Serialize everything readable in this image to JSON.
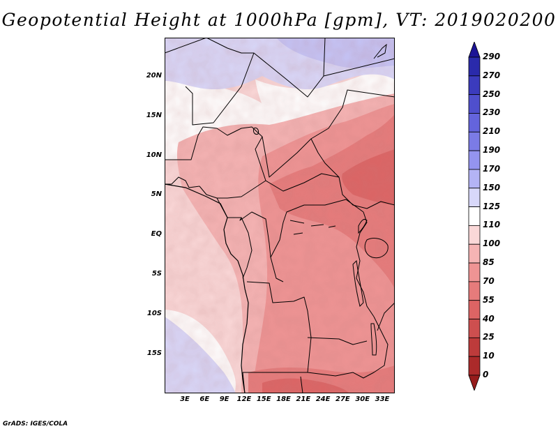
{
  "title": "Geopotential Height at 1000hPa [gpm], VT: 2019020200",
  "map": {
    "region": "Central Africa",
    "variable": "Geopotential Height at 1000hPa",
    "units": "gpm",
    "valid_time": "2019020200",
    "lat_labels": [
      "20N",
      "15N",
      "10N",
      "5N",
      "EQ",
      "5S",
      "10S",
      "15S"
    ],
    "lon_labels": [
      "3E",
      "6E",
      "9E",
      "12E",
      "15E",
      "18E",
      "21E",
      "24E",
      "27E",
      "30E",
      "33E"
    ],
    "lon_range": [
      0,
      35
    ],
    "lat_range": [
      -20,
      25
    ]
  },
  "colorbar": {
    "levels": [
      "290",
      "270",
      "250",
      "230",
      "210",
      "190",
      "170",
      "150",
      "125",
      "110",
      "100",
      "85",
      "70",
      "55",
      "40",
      "25",
      "10",
      "0"
    ],
    "colors": [
      "#1c1496",
      "#2a2aab",
      "#3b3bbd",
      "#4f4fcd",
      "#6464dc",
      "#7b7be6",
      "#9494ef",
      "#b4b4f5",
      "#d8d8fa",
      "#ffffff",
      "#fad8d8",
      "#f5b4b4",
      "#ef9494",
      "#e67b7b",
      "#dc6464",
      "#cd4f4f",
      "#bd3b3b",
      "#ab2a2a",
      "#961c1c"
    ]
  },
  "credit": "GrADS: IGES/COLA"
}
